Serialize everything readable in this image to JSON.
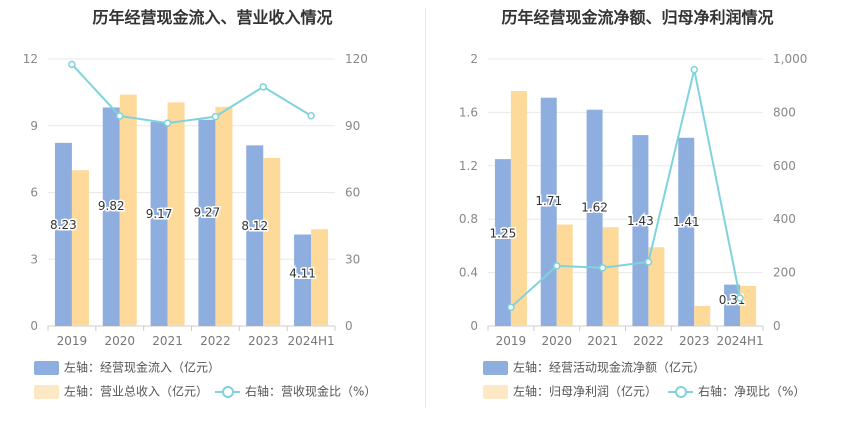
{
  "chart_data": [
    {
      "type": "bar",
      "title": "历年经营现金流入、营业收入情况",
      "categories": [
        "2019",
        "2020",
        "2021",
        "2022",
        "2023",
        "2024H1"
      ],
      "left_axis": {
        "ticks": [
          "0",
          "3",
          "6",
          "9",
          "12"
        ],
        "ylim": [
          0,
          12
        ]
      },
      "right_axis": {
        "ticks": [
          "0",
          "30",
          "60",
          "90",
          "120"
        ],
        "ylim": [
          0,
          120
        ]
      },
      "series": [
        {
          "name": "左轴：经营现金流入（亿元）",
          "axis": "left",
          "kind": "bar",
          "color": "#8eaedf",
          "values": [
            8.23,
            9.82,
            9.17,
            9.27,
            8.12,
            4.11
          ],
          "labels": [
            "8.23",
            "9.82",
            "9.17",
            "9.27",
            "8.12",
            "4.11"
          ]
        },
        {
          "name": "左轴：营业总收入（亿元）",
          "axis": "left",
          "kind": "bar",
          "color": "#fdd99a",
          "values": [
            7.0,
            10.4,
            10.05,
            9.85,
            7.55,
            4.35
          ]
        },
        {
          "name": "右轴：营收现金比（%）",
          "axis": "right",
          "kind": "line",
          "color": "#7fd3dc",
          "values": [
            117.6,
            94.4,
            91.2,
            94.1,
            107.5,
            94.5
          ]
        }
      ],
      "grid": true,
      "legend_position": "bottom-left"
    },
    {
      "type": "bar",
      "title": "历年经营现金流净额、归母净利润情况",
      "categories": [
        "2019",
        "2020",
        "2021",
        "2022",
        "2023",
        "2024H1"
      ],
      "left_axis": {
        "ticks": [
          "0",
          "0.4",
          "0.8",
          "1.2",
          "1.6",
          "2"
        ],
        "ylim": [
          0,
          2
        ]
      },
      "right_axis": {
        "ticks": [
          "0",
          "200",
          "400",
          "600",
          "800",
          "1,000"
        ],
        "ylim": [
          0,
          1000
        ]
      },
      "series": [
        {
          "name": "左轴：经营活动现金流净额（亿元）",
          "axis": "left",
          "kind": "bar",
          "color": "#8eaedf",
          "values": [
            1.25,
            1.71,
            1.62,
            1.43,
            1.41,
            0.31
          ],
          "labels": [
            "1.25",
            "1.71",
            "1.62",
            "1.43",
            "1.41",
            "0.31"
          ]
        },
        {
          "name": "左轴：归母净利润（亿元）",
          "axis": "left",
          "kind": "bar",
          "color": "#fdd99a",
          "values": [
            1.76,
            0.76,
            0.74,
            0.59,
            0.15,
            0.3
          ]
        },
        {
          "name": "右轴：净现比（%）",
          "axis": "right",
          "kind": "line",
          "color": "#7fd3dc",
          "values": [
            70,
            225,
            218,
            240,
            960,
            105
          ]
        }
      ],
      "grid": true,
      "legend_position": "bottom-left"
    }
  ]
}
